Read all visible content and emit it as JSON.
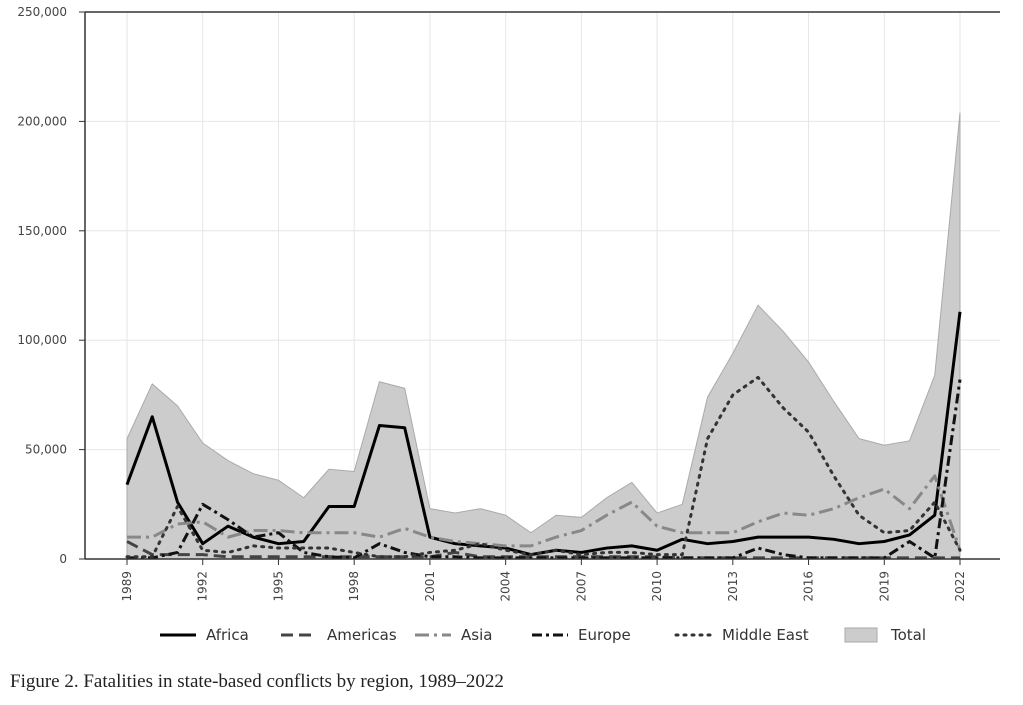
{
  "chart_data": {
    "type": "line",
    "title": "",
    "caption": "Figure 2. Fatalities in state-based conflicts by region, 1989–2022",
    "xlabel": "",
    "ylabel": "",
    "xlim": [
      1989,
      2022
    ],
    "ylim": [
      0,
      250000
    ],
    "grid": true,
    "legend_position": "bottom",
    "x": [
      1989,
      1990,
      1991,
      1992,
      1993,
      1994,
      1995,
      1996,
      1997,
      1998,
      1999,
      2000,
      2001,
      2002,
      2003,
      2004,
      2005,
      2006,
      2007,
      2008,
      2009,
      2010,
      2011,
      2012,
      2013,
      2014,
      2015,
      2016,
      2017,
      2018,
      2019,
      2020,
      2021,
      2022
    ],
    "x_tick_labels": [
      "1989",
      "1992",
      "1995",
      "1998",
      "2001",
      "2004",
      "2007",
      "2010",
      "2013",
      "2016",
      "2019",
      "2022"
    ],
    "x_tick_values": [
      1989,
      1992,
      1995,
      1998,
      2001,
      2004,
      2007,
      2010,
      2013,
      2016,
      2019,
      2022
    ],
    "y_tick_labels": [
      "0",
      "50,000",
      "100,000",
      "150,000",
      "200,000",
      "250,000"
    ],
    "y_tick_values": [
      0,
      50000,
      100000,
      150000,
      200000,
      250000
    ],
    "series": [
      {
        "name": "Total",
        "style": "area",
        "color": "#cccccc",
        "values": [
          55000,
          80000,
          70000,
          53000,
          45000,
          39000,
          36000,
          28000,
          41000,
          40000,
          81000,
          78000,
          23000,
          21000,
          23000,
          20000,
          12000,
          20000,
          19000,
          28000,
          35000,
          21000,
          25000,
          74000,
          94000,
          116000,
          104000,
          90000,
          72000,
          55000,
          52000,
          54000,
          84000,
          204000
        ]
      },
      {
        "name": "Africa",
        "style": "solid",
        "color": "#000000",
        "values": [
          34000,
          65000,
          26000,
          7000,
          15000,
          10000,
          7000,
          8000,
          24000,
          24000,
          61000,
          60000,
          10000,
          7000,
          6000,
          5000,
          2000,
          4000,
          3000,
          5000,
          6000,
          4000,
          9000,
          7000,
          8000,
          10000,
          10000,
          10000,
          9000,
          7000,
          8000,
          11000,
          20000,
          113000
        ]
      },
      {
        "name": "Americas",
        "style": "dashed",
        "color": "#444444",
        "values": [
          8000,
          2000,
          2000,
          2000,
          1000,
          1000,
          1000,
          1000,
          1000,
          1000,
          1000,
          1000,
          1000,
          3000,
          1000,
          1000,
          1000,
          1000,
          1000,
          1000,
          1000,
          1000,
          500,
          500,
          500,
          500,
          500,
          500,
          500,
          500,
          500,
          500,
          500,
          500
        ]
      },
      {
        "name": "Asia",
        "style": "dashdot",
        "color": "#888888",
        "values": [
          10000,
          10000,
          16000,
          17000,
          10000,
          13000,
          13000,
          12000,
          12000,
          12000,
          10000,
          14000,
          10000,
          8000,
          7000,
          6000,
          6000,
          10000,
          13000,
          20000,
          26000,
          15000,
          12000,
          12000,
          12000,
          17000,
          21000,
          20000,
          23000,
          28000,
          32000,
          23000,
          38000,
          4000
        ]
      },
      {
        "name": "Europe",
        "style": "dashdot",
        "color": "#111111",
        "values": [
          500,
          500,
          3000,
          25000,
          18000,
          10000,
          12000,
          3000,
          1000,
          500,
          7000,
          3000,
          1000,
          1000,
          500,
          500,
          500,
          500,
          500,
          500,
          500,
          500,
          500,
          500,
          500,
          5000,
          2000,
          500,
          500,
          500,
          500,
          8000,
          500,
          82000
        ]
      },
      {
        "name": "Middle East",
        "style": "dotted",
        "color": "#333333",
        "values": [
          1000,
          1000,
          24000,
          4000,
          3000,
          6000,
          5000,
          5000,
          5000,
          3000,
          1000,
          1000,
          3000,
          4000,
          7000,
          4000,
          2000,
          4000,
          2000,
          3000,
          3000,
          2000,
          2000,
          55000,
          75000,
          83000,
          69000,
          58000,
          38000,
          20000,
          12000,
          13000,
          26000,
          4000
        ]
      }
    ]
  }
}
